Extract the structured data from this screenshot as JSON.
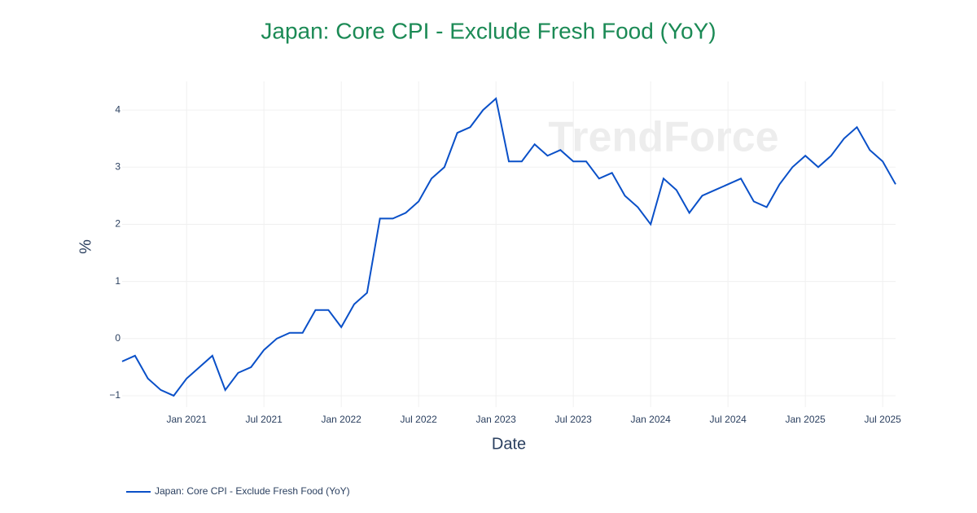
{
  "chart_data": {
    "type": "line",
    "title": "Japan: Core CPI - Exclude Fresh Food (YoY)",
    "watermark": "TrendForce",
    "xlabel": "Date",
    "ylabel": "%",
    "x": [
      "2020-08",
      "2020-09",
      "2020-10",
      "2020-11",
      "2020-12",
      "2021-01",
      "2021-02",
      "2021-03",
      "2021-04",
      "2021-05",
      "2021-06",
      "2021-07",
      "2021-08",
      "2021-09",
      "2021-10",
      "2021-11",
      "2021-12",
      "2022-01",
      "2022-02",
      "2022-03",
      "2022-04",
      "2022-05",
      "2022-06",
      "2022-07",
      "2022-08",
      "2022-09",
      "2022-10",
      "2022-11",
      "2022-12",
      "2023-01",
      "2023-02",
      "2023-03",
      "2023-04",
      "2023-05",
      "2023-06",
      "2023-07",
      "2023-08",
      "2023-09",
      "2023-10",
      "2023-11",
      "2023-12",
      "2024-01",
      "2024-02",
      "2024-03",
      "2024-04",
      "2024-05",
      "2024-06",
      "2024-07",
      "2024-08",
      "2024-09",
      "2024-10",
      "2024-11",
      "2024-12",
      "2025-01",
      "2025-02",
      "2025-03",
      "2025-04",
      "2025-05",
      "2025-06",
      "2025-07",
      "2025-08"
    ],
    "series": [
      {
        "name": "Japan: Core CPI - Exclude Fresh Food (YoY)",
        "color": "#0a50c8",
        "values": [
          -0.4,
          -0.3,
          -0.7,
          -0.9,
          -1.0,
          -0.7,
          -0.5,
          -0.3,
          -0.9,
          -0.6,
          -0.5,
          -0.2,
          0.0,
          0.1,
          0.1,
          0.5,
          0.5,
          0.2,
          0.6,
          0.8,
          2.1,
          2.1,
          2.2,
          2.4,
          2.8,
          3.0,
          3.6,
          3.7,
          4.0,
          4.2,
          3.1,
          3.1,
          3.4,
          3.2,
          3.3,
          3.1,
          3.1,
          2.8,
          2.9,
          2.5,
          2.3,
          2.0,
          2.8,
          2.6,
          2.2,
          2.5,
          2.6,
          2.7,
          2.8,
          2.4,
          2.3,
          2.7,
          3.0,
          3.2,
          3.0,
          3.2,
          3.5,
          3.7,
          3.3,
          3.1,
          2.7
        ]
      }
    ],
    "xlim": [
      "2020-08",
      "2025-08"
    ],
    "xticks": [
      {
        "value": "2021-01",
        "label": "Jan 2021"
      },
      {
        "value": "2021-07",
        "label": "Jul 2021"
      },
      {
        "value": "2022-01",
        "label": "Jan 2022"
      },
      {
        "value": "2022-07",
        "label": "Jul 2022"
      },
      {
        "value": "2023-01",
        "label": "Jan 2023"
      },
      {
        "value": "2023-07",
        "label": "Jul 2023"
      },
      {
        "value": "2024-01",
        "label": "Jan 2024"
      },
      {
        "value": "2024-07",
        "label": "Jul 2024"
      },
      {
        "value": "2025-01",
        "label": "Jan 2025"
      },
      {
        "value": "2025-07",
        "label": "Jul 2025"
      }
    ],
    "ylim": [
      -1.2,
      4.5
    ],
    "yticks": [
      {
        "value": -1,
        "label": "−1"
      },
      0,
      1,
      2,
      3,
      4
    ],
    "grid": true,
    "legend": "bottom-left"
  }
}
